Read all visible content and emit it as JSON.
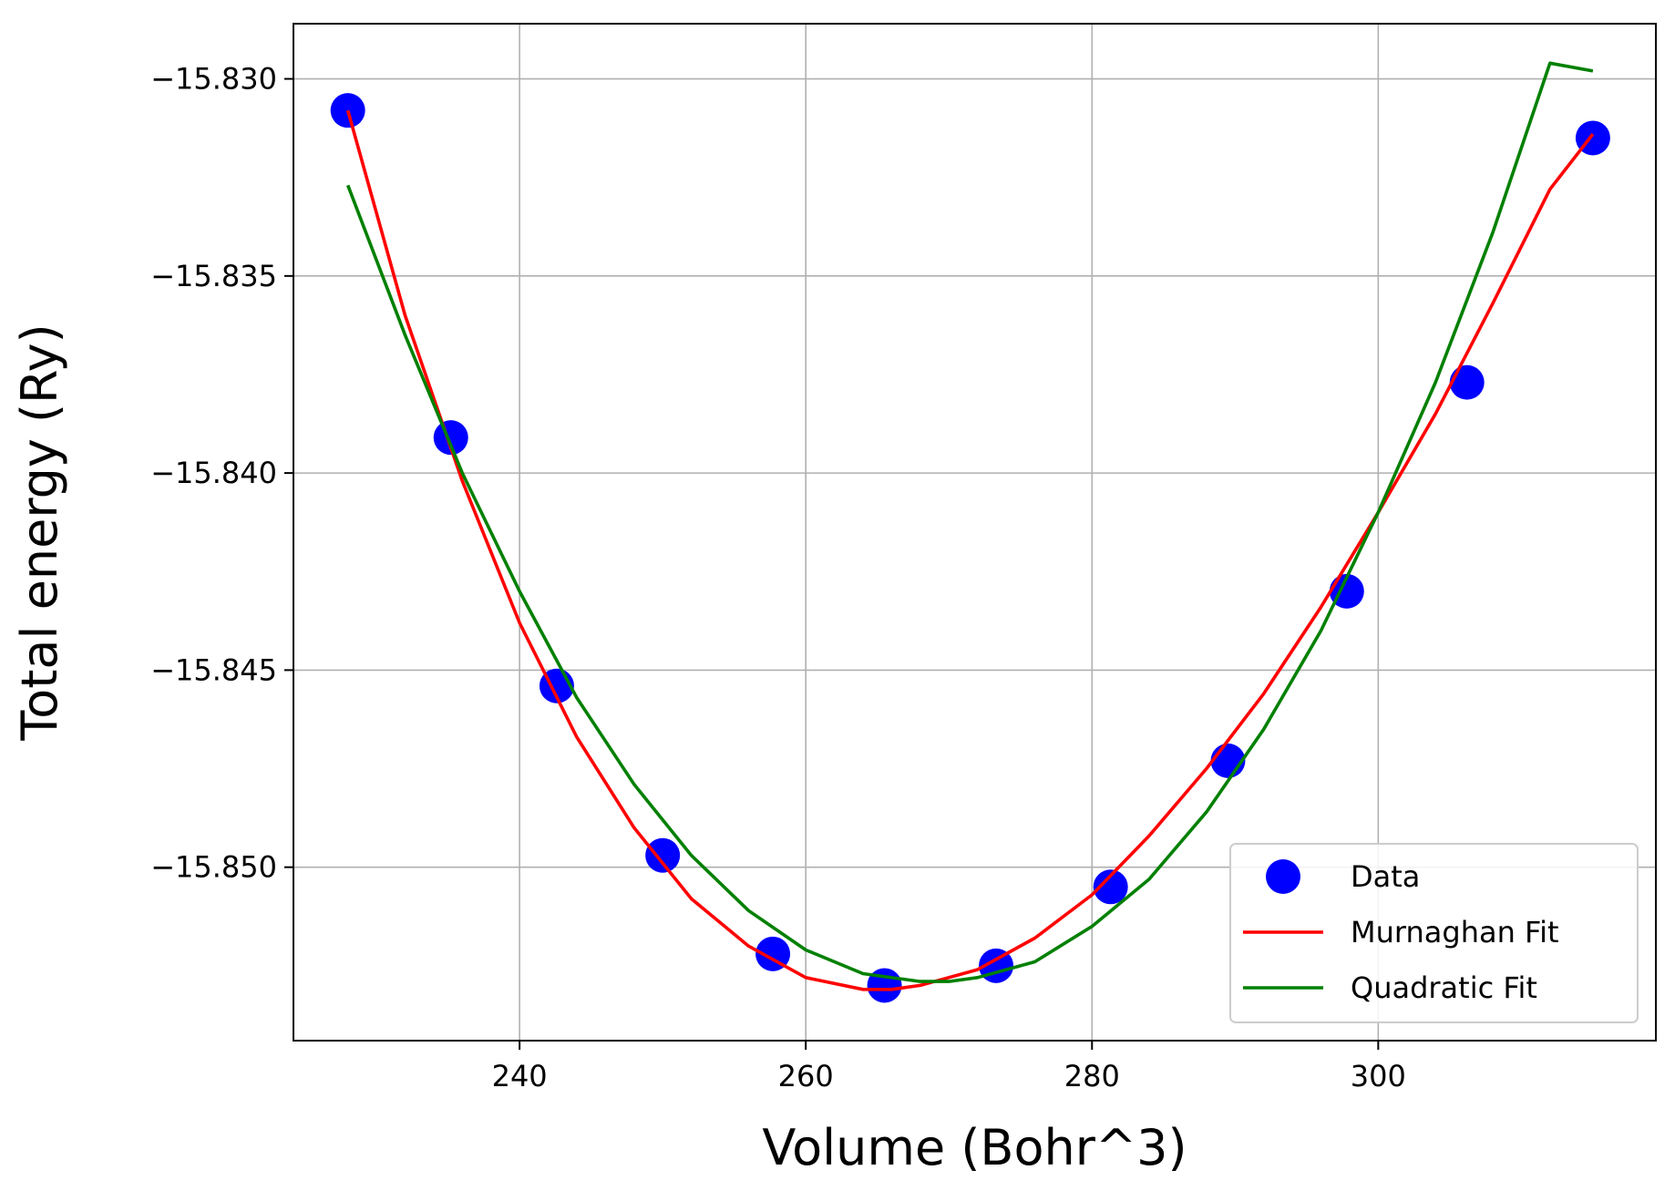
{
  "chart_data": {
    "type": "scatter",
    "title": "",
    "xlabel": "Volume (Bohr^3)",
    "ylabel": "Total energy (Ry)",
    "xlim": [
      224.2,
      319.4
    ],
    "ylim": [
      -15.8544,
      -15.8286
    ],
    "x_ticks": [
      240,
      260,
      280,
      300
    ],
    "x_tick_labels": [
      "240",
      "260",
      "280",
      "300"
    ],
    "y_ticks": [
      -15.83,
      -15.835,
      -15.84,
      -15.845,
      -15.85
    ],
    "y_tick_labels": [
      "−15.830",
      "−15.835",
      "−15.840",
      "−15.845",
      "−15.850"
    ],
    "grid": true,
    "legend_position": "lower right",
    "series": [
      {
        "name": "Data",
        "kind": "scatter",
        "color": "#0000ff",
        "x": [
          228.0,
          235.2,
          242.6,
          250.0,
          257.7,
          265.5,
          273.3,
          281.3,
          289.5,
          297.8,
          306.2,
          315.0
        ],
        "y": [
          -15.8308,
          -15.8391,
          -15.8454,
          -15.8497,
          -15.8522,
          -15.853,
          -15.8525,
          -15.8505,
          -15.8473,
          -15.843,
          -15.8377,
          -15.8315
        ]
      },
      {
        "name": "Murnaghan Fit",
        "kind": "line",
        "color": "#ff0000",
        "x": [
          228,
          232,
          236,
          240,
          244,
          248,
          252,
          256,
          260,
          264,
          266,
          268,
          272,
          276,
          280,
          284,
          288,
          292,
          296,
          300,
          304,
          308,
          312,
          315
        ],
        "y": [
          -15.8308,
          -15.836,
          -15.8402,
          -15.8438,
          -15.8467,
          -15.849,
          -15.8508,
          -15.852,
          -15.8528,
          -15.8531,
          -15.8531,
          -15.853,
          -15.8526,
          -15.8518,
          -15.8507,
          -15.8492,
          -15.8475,
          -15.8456,
          -15.8434,
          -15.841,
          -15.8385,
          -15.8357,
          -15.8328,
          -15.8314
        ]
      },
      {
        "name": "Quadratic Fit",
        "kind": "line",
        "color": "#008000",
        "x": [
          228,
          232,
          236,
          240,
          244,
          248,
          252,
          256,
          260,
          264,
          268,
          270,
          272,
          276,
          280,
          284,
          288,
          292,
          296,
          300,
          304,
          308,
          312,
          315
        ],
        "y": [
          -15.8327,
          -15.8365,
          -15.84,
          -15.843,
          -15.8457,
          -15.8479,
          -15.8497,
          -15.8511,
          -15.8521,
          -15.8527,
          -15.8529,
          -15.8529,
          -15.8528,
          -15.8524,
          -15.8515,
          -15.8503,
          -15.8486,
          -15.8465,
          -15.844,
          -15.841,
          -15.8377,
          -15.8339,
          -15.8296,
          -15.8298
        ]
      }
    ]
  }
}
